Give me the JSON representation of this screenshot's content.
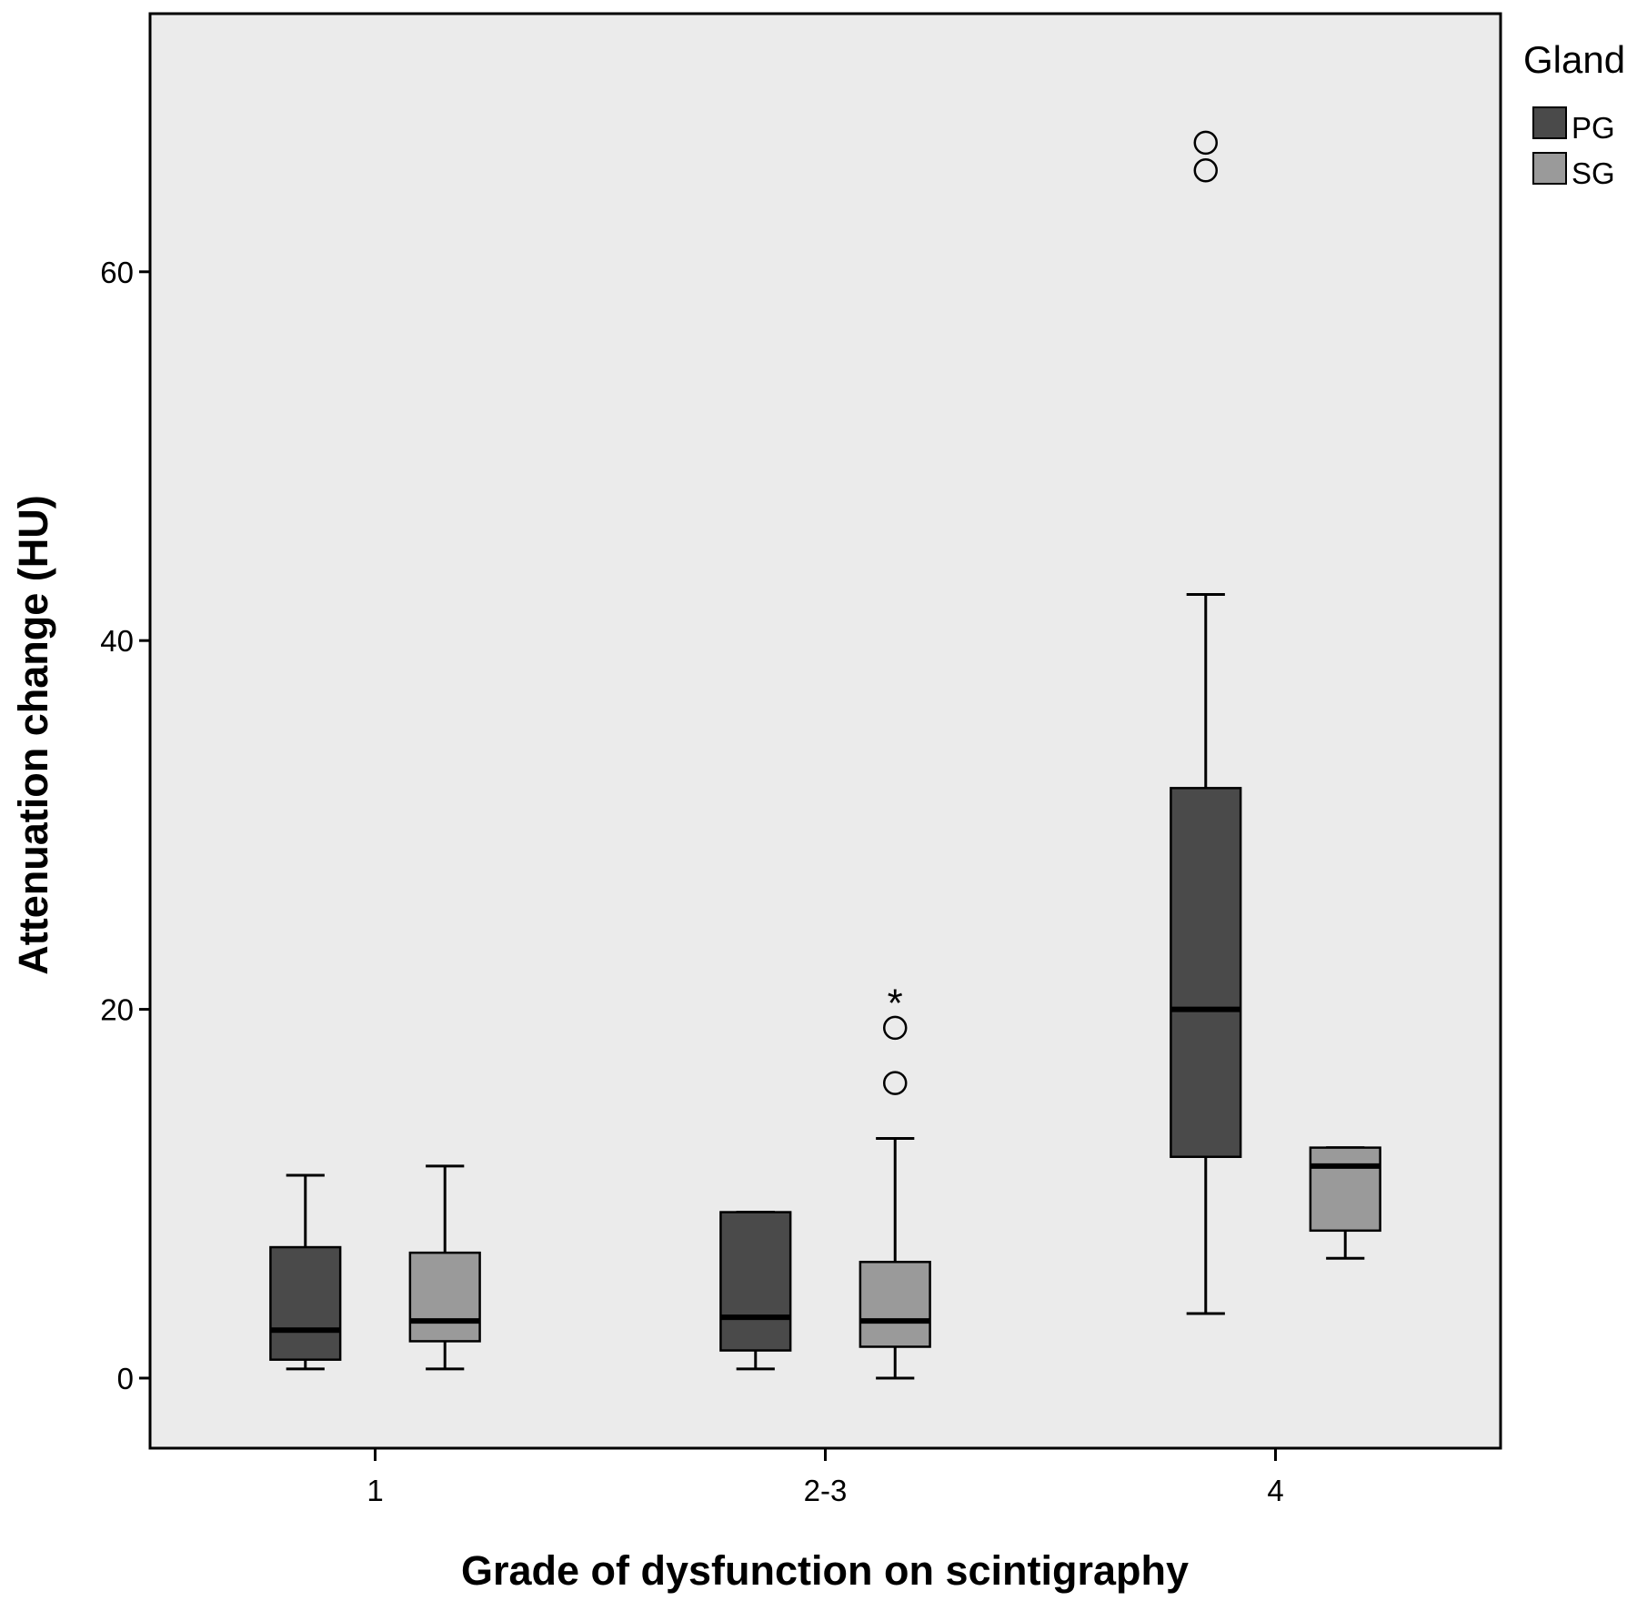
{
  "chart_data": {
    "type": "boxplot",
    "xlabel": "Grade of dysfunction on scintigraphy",
    "ylabel": "Attenuation change (HU)",
    "ylim": [
      -3.8,
      74
    ],
    "yticks": [
      0,
      20,
      40,
      60
    ],
    "categories": [
      "1",
      "2-3",
      "4"
    ],
    "legend": {
      "title": "Gland",
      "position": "top-right"
    },
    "colors": {
      "plot_bg": "#ebebeb",
      "PG": "#4a4a4a",
      "SG": "#9a9a9a",
      "line": "#000000"
    },
    "series": [
      {
        "name": "PG",
        "boxes": [
          {
            "category": "1",
            "min": 0.5,
            "q1": 1.0,
            "median": 2.6,
            "q3": 7.1,
            "max": 11.0,
            "outliers": [],
            "extremes": []
          },
          {
            "category": "2-3",
            "min": 0.5,
            "q1": 1.5,
            "median": 3.3,
            "q3": 9.0,
            "max": 9.0,
            "outliers": [],
            "extremes": []
          },
          {
            "category": "4",
            "min": 3.5,
            "q1": 12.0,
            "median": 20.0,
            "q3": 32.0,
            "max": 42.5,
            "outliers": [
              65.5,
              67.0
            ],
            "extremes": []
          }
        ]
      },
      {
        "name": "SG",
        "boxes": [
          {
            "category": "1",
            "min": 0.5,
            "q1": 2.0,
            "median": 3.1,
            "q3": 6.8,
            "max": 11.5,
            "outliers": [],
            "extremes": []
          },
          {
            "category": "2-3",
            "min": 0.0,
            "q1": 1.7,
            "median": 3.1,
            "q3": 6.3,
            "max": 13.0,
            "outliers": [
              16.0,
              19.0
            ],
            "extremes": [
              20.5
            ]
          },
          {
            "category": "4",
            "min": 6.5,
            "q1": 8.0,
            "median": 11.5,
            "q3": 12.5,
            "max": 12.5,
            "outliers": [],
            "extremes": []
          }
        ]
      }
    ]
  }
}
